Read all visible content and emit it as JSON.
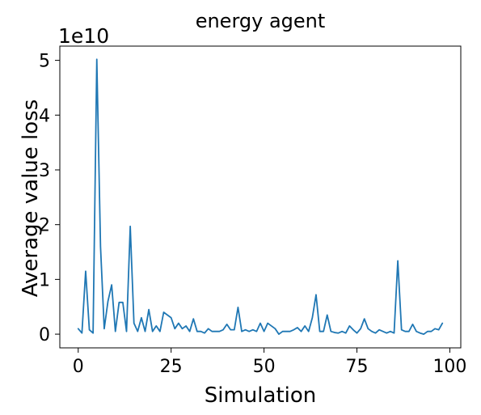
{
  "chart_data": {
    "type": "line",
    "title": "energy agent",
    "xlabel": "Simulation",
    "ylabel": "Average value loss",
    "y_offset_label": "1e10",
    "y_scale_factor": 10000000000,
    "xlim": [
      -4.95,
      102.95
    ],
    "ylim": [
      -0.25,
      5.26
    ],
    "x_ticks": [
      0,
      25,
      50,
      75,
      100
    ],
    "x_tick_labels": [
      "0",
      "25",
      "50",
      "75",
      "100"
    ],
    "y_ticks": [
      0,
      1,
      2,
      3,
      4,
      5
    ],
    "y_tick_labels": [
      "0",
      "1",
      "2",
      "3",
      "4",
      "5"
    ],
    "grid": false,
    "line_color": "#1f77b4",
    "series": [
      {
        "x": [
          0,
          1,
          2,
          3,
          4,
          5,
          6,
          7,
          8,
          9,
          10,
          11,
          12,
          13,
          14,
          15,
          16,
          17,
          18,
          19,
          20,
          21,
          22,
          23,
          24,
          25,
          26,
          27,
          28,
          29,
          30,
          31,
          32,
          33,
          34,
          35,
          36,
          37,
          38,
          39,
          40,
          41,
          42,
          43,
          44,
          45,
          46,
          47,
          48,
          49,
          50,
          51,
          52,
          53,
          54,
          55,
          56,
          57,
          58,
          59,
          60,
          61,
          62,
          63,
          64,
          65,
          66,
          67,
          68,
          69,
          70,
          71,
          72,
          73,
          74,
          75,
          76,
          77,
          78,
          79,
          80,
          81,
          82,
          83,
          84,
          85,
          86,
          87,
          88,
          89,
          90,
          91,
          92,
          93,
          94,
          95,
          96,
          97,
          98
        ],
        "y": [
          0.1,
          0.02,
          1.15,
          0.08,
          0.02,
          5.02,
          1.6,
          0.1,
          0.6,
          0.9,
          0.05,
          0.58,
          0.58,
          0.05,
          1.97,
          0.2,
          0.05,
          0.3,
          0.05,
          0.45,
          0.05,
          0.15,
          0.05,
          0.4,
          0.35,
          0.3,
          0.1,
          0.2,
          0.1,
          0.15,
          0.05,
          0.28,
          0.05,
          0.05,
          0.02,
          0.1,
          0.05,
          0.05,
          0.05,
          0.08,
          0.18,
          0.08,
          0.08,
          0.49,
          0.05,
          0.08,
          0.05,
          0.08,
          0.05,
          0.2,
          0.05,
          0.2,
          0.15,
          0.1,
          0.0,
          0.05,
          0.05,
          0.05,
          0.08,
          0.12,
          0.05,
          0.15,
          0.05,
          0.3,
          0.72,
          0.05,
          0.05,
          0.35,
          0.05,
          0.03,
          0.02,
          0.05,
          0.02,
          0.15,
          0.08,
          0.02,
          0.1,
          0.28,
          0.1,
          0.05,
          0.02,
          0.08,
          0.05,
          0.02,
          0.05,
          0.02,
          1.34,
          0.08,
          0.05,
          0.05,
          0.18,
          0.05,
          0.02,
          0.0,
          0.05,
          0.05,
          0.1,
          0.08,
          0.2
        ]
      }
    ]
  }
}
